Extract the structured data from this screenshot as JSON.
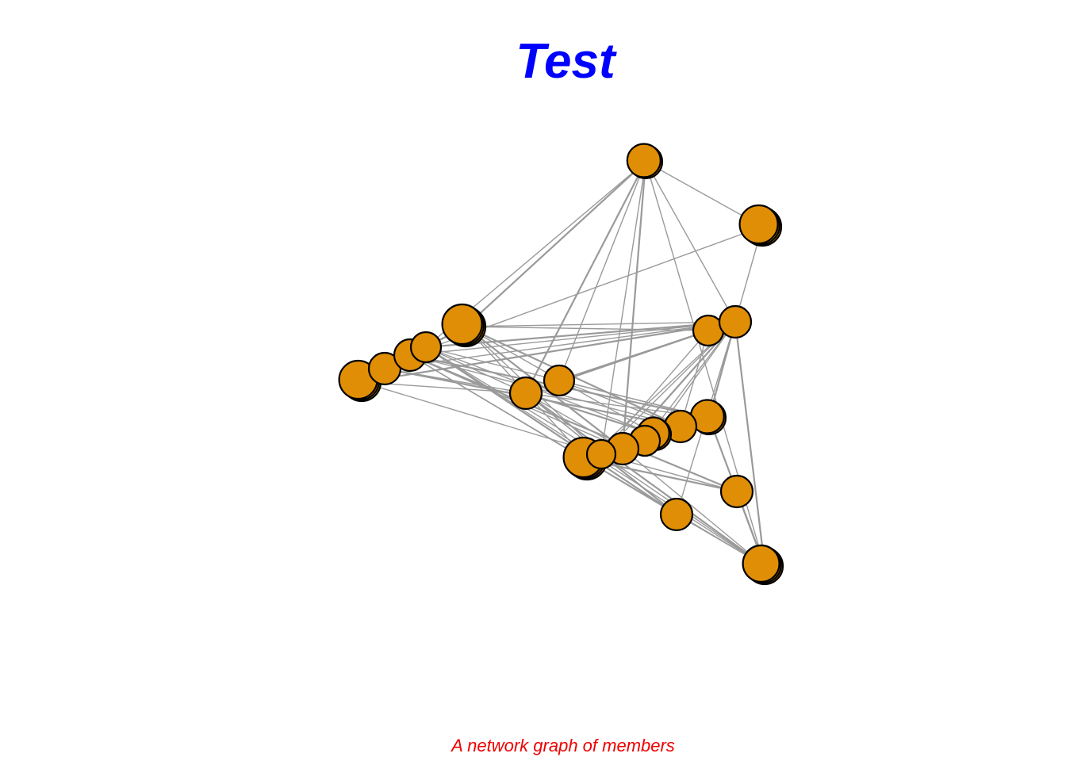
{
  "title": "Test",
  "subtitle": "A network graph of members",
  "colors": {
    "title": "#0000ff",
    "subtitle": "#ee0000",
    "node_fill": "#df8e06",
    "node_stroke": "#000000",
    "edge": "#9a9a9a"
  },
  "chart_data": {
    "type": "network",
    "nodes": [
      {
        "id": "n1"
      },
      {
        "id": "n2"
      },
      {
        "id": "n3"
      },
      {
        "id": "n4"
      },
      {
        "id": "n5"
      },
      {
        "id": "n6"
      },
      {
        "id": "n7"
      },
      {
        "id": "n8"
      },
      {
        "id": "n9"
      },
      {
        "id": "n10"
      },
      {
        "id": "n11"
      },
      {
        "id": "n12"
      },
      {
        "id": "n13"
      },
      {
        "id": "n14"
      },
      {
        "id": "n15"
      },
      {
        "id": "n16"
      },
      {
        "id": "n17"
      },
      {
        "id": "n18"
      },
      {
        "id": "n19"
      },
      {
        "id": "n20"
      },
      {
        "id": "n21"
      }
    ],
    "edges": [
      [
        "n2",
        "n3"
      ],
      [
        "n2",
        "n4"
      ],
      [
        "n2",
        "n10"
      ],
      [
        "n2",
        "n13"
      ],
      [
        "n2",
        "n8"
      ],
      [
        "n3",
        "n4"
      ],
      [
        "n3",
        "n5"
      ],
      [
        "n3",
        "n10"
      ],
      [
        "n3",
        "n11"
      ],
      [
        "n3",
        "n12"
      ],
      [
        "n3",
        "n16"
      ],
      [
        "n3",
        "n19"
      ],
      [
        "n3",
        "n18"
      ],
      [
        "n3",
        "n20"
      ],
      [
        "n3",
        "n13"
      ],
      [
        "n4",
        "n5"
      ],
      [
        "n4",
        "n6"
      ],
      [
        "n4",
        "n8"
      ],
      [
        "n4",
        "n10"
      ],
      [
        "n4",
        "n12"
      ],
      [
        "n4",
        "n14"
      ],
      [
        "n4",
        "n19"
      ],
      [
        "n4",
        "n20"
      ],
      [
        "n4",
        "n21"
      ],
      [
        "n5",
        "n6"
      ],
      [
        "n5",
        "n9"
      ],
      [
        "n5",
        "n10"
      ],
      [
        "n5",
        "n16"
      ],
      [
        "n5",
        "n21"
      ],
      [
        "n5",
        "n17"
      ],
      [
        "n5",
        "n13"
      ],
      [
        "n5",
        "n14"
      ],
      [
        "n6",
        "n7"
      ],
      [
        "n6",
        "n8"
      ],
      [
        "n6",
        "n10"
      ],
      [
        "n6",
        "n11"
      ],
      [
        "n6",
        "n16"
      ],
      [
        "n6",
        "n20"
      ],
      [
        "n6",
        "n21"
      ],
      [
        "n7",
        "n10"
      ],
      [
        "n7",
        "n12"
      ],
      [
        "n7",
        "n13"
      ],
      [
        "n8",
        "n9"
      ],
      [
        "n8",
        "n10"
      ],
      [
        "n8",
        "n12"
      ],
      [
        "n8",
        "n14"
      ],
      [
        "n8",
        "n16"
      ],
      [
        "n8",
        "n19"
      ],
      [
        "n8",
        "n20"
      ],
      [
        "n8",
        "n21"
      ],
      [
        "n9",
        "n13"
      ],
      [
        "n9",
        "n10"
      ],
      [
        "n9",
        "n21"
      ],
      [
        "n10",
        "n11"
      ],
      [
        "n10",
        "n12"
      ],
      [
        "n10",
        "n14"
      ],
      [
        "n10",
        "n15"
      ],
      [
        "n10",
        "n16"
      ],
      [
        "n10",
        "n17"
      ],
      [
        "n10",
        "n19"
      ],
      [
        "n10",
        "n20"
      ],
      [
        "n10",
        "n21"
      ],
      [
        "n12",
        "n13"
      ],
      [
        "n12",
        "n20"
      ],
      [
        "n13",
        "n14"
      ],
      [
        "n13",
        "n21"
      ],
      [
        "n14",
        "n15"
      ],
      [
        "n15",
        "n16"
      ],
      [
        "n16",
        "n21"
      ],
      [
        "n17",
        "n18"
      ],
      [
        "n18",
        "n21"
      ],
      [
        "n19",
        "n20"
      ],
      [
        "n19",
        "n21"
      ],
      [
        "n20",
        "n21"
      ],
      [
        "n16",
        "n20"
      ],
      [
        "n18",
        "n20"
      ],
      [
        "n1",
        "n2"
      ],
      [
        "n1",
        "n21"
      ],
      [
        "n1",
        "n10"
      ],
      [
        "n1",
        "n8"
      ]
    ]
  }
}
